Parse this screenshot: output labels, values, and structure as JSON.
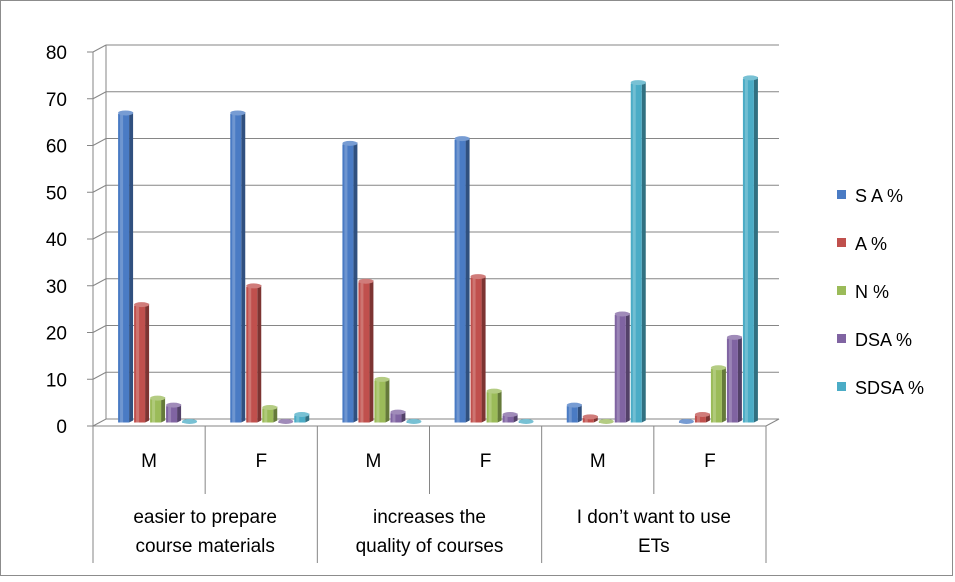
{
  "chart_data": {
    "type": "bar",
    "title": "",
    "xlabel": "",
    "ylabel": "",
    "ylim": [
      0,
      80
    ],
    "yticks": [
      0,
      10,
      20,
      30,
      40,
      50,
      60,
      70,
      80
    ],
    "grid": true,
    "legend_position": "right",
    "groups": [
      {
        "label_lines": [
          "easier to prepare",
          "course materials"
        ],
        "categories": [
          "M",
          "F"
        ]
      },
      {
        "label_lines": [
          "increases the",
          "quality of courses"
        ],
        "categories": [
          "M",
          "F"
        ]
      },
      {
        "label_lines": [
          "I don’t want to use",
          "ETs"
        ],
        "categories": [
          "M",
          "F"
        ]
      }
    ],
    "series": [
      {
        "name": "S A %",
        "color": "#4a7bc4",
        "values": [
          66,
          66,
          59.5,
          60.5,
          3.5,
          0
        ]
      },
      {
        "name": "A %",
        "color": "#c0504d",
        "values": [
          25,
          29,
          30,
          31,
          1,
          1.5
        ]
      },
      {
        "name": "N %",
        "color": "#9bbb59",
        "values": [
          5,
          3,
          9,
          6.5,
          0,
          11.5
        ]
      },
      {
        "name": "DSA %",
        "color": "#8064a2",
        "values": [
          3.5,
          0,
          2,
          1.5,
          23,
          18
        ]
      },
      {
        "name": "SDSA %",
        "color": "#4bacc6",
        "values": [
          0,
          1.5,
          0,
          0,
          72.5,
          73.5
        ]
      }
    ]
  }
}
